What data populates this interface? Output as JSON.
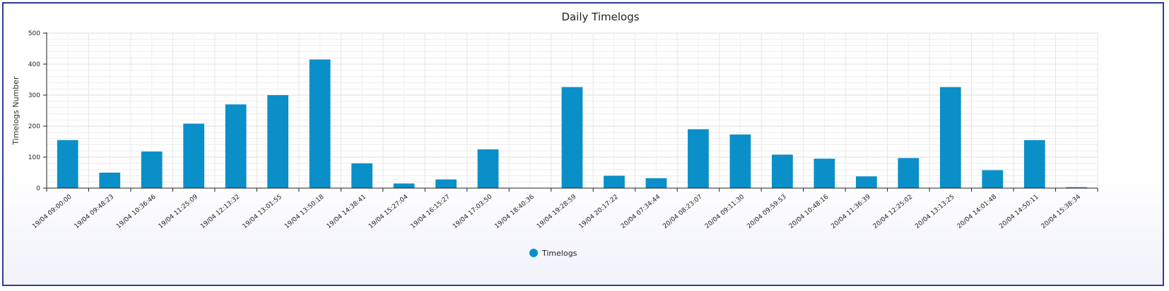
{
  "chart_data": {
    "type": "bar",
    "title": "Daily Timelogs",
    "ylabel": "Timelogs Number",
    "xlabel": "",
    "ylim": [
      0,
      500
    ],
    "yticks": [
      0,
      100,
      200,
      300,
      400,
      500
    ],
    "grid": true,
    "legend_position": "bottom-center",
    "bar_color": "#0a8fc8",
    "categories": [
      "19/04 09:00:00",
      "19/04 09:48:23",
      "19/04 10:36:46",
      "19/04 11:25:09",
      "19/04 12:13:32",
      "19/04 13:01:55",
      "19/04 13:50:18",
      "19/04 14:38:41",
      "19/04 15:27:04",
      "19/04 16:15:27",
      "19/04 17:03:50",
      "19/04 18:40:36",
      "19/04 19:28:59",
      "19/04 20:17:22",
      "20/04 07:34:44",
      "20/04 08:23:07",
      "20/04 09:11:30",
      "20/04 09:59:53",
      "20/04 10:48:16",
      "20/04 11:36:39",
      "20/04 12:25:02",
      "20/04 13:13:25",
      "20/04 14:01:48",
      "20/04 14:50:11",
      "20/04 15:38:34"
    ],
    "series": [
      {
        "name": "Timelogs",
        "values": [
          155,
          50,
          118,
          208,
          270,
          300,
          415,
          80,
          15,
          28,
          125,
          0,
          326,
          40,
          32,
          190,
          173,
          108,
          95,
          38,
          97,
          326,
          58,
          155,
          3
        ]
      }
    ]
  }
}
